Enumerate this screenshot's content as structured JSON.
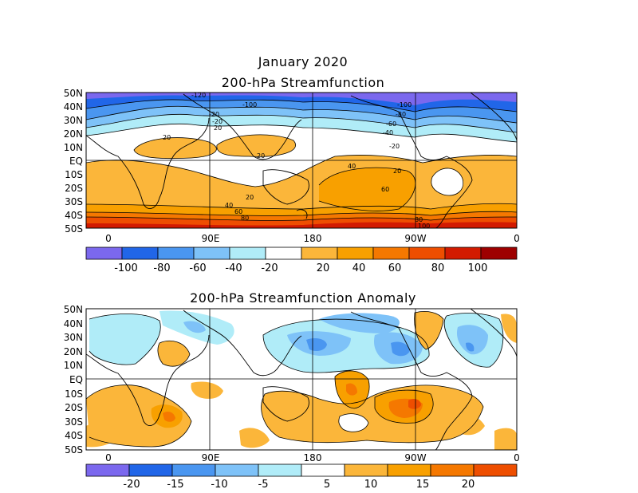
{
  "titles": {
    "main": "January 2020",
    "panel1": "200-hPa Streamfunction",
    "panel2": "200-hPa Streamfunction Anomaly"
  },
  "lat_labels": [
    "50N",
    "40N",
    "30N",
    "20N",
    "10N",
    "EQ",
    "10S",
    "20S",
    "30S",
    "40S",
    "50S"
  ],
  "lon_labels": [
    "0",
    "90E",
    "180",
    "90W",
    "0"
  ],
  "panel1": {
    "colorbar_colors": [
      "#7b68ee",
      "#2166e8",
      "#4a96f0",
      "#7ec2f8",
      "#b0ecf8",
      "#ffffff",
      "#fbb63a",
      "#f8a000",
      "#f57800",
      "#ee4e00",
      "#d21a00",
      "#9e0000"
    ],
    "colorbar_labels": [
      "-100",
      "-80",
      "-60",
      "-40",
      "-20",
      "20",
      "40",
      "60",
      "80",
      "100"
    ],
    "contour_labels": [
      "-120",
      "-100",
      "-100",
      "-80",
      "-60",
      "-40",
      "-20",
      "20",
      "20",
      "20",
      "20",
      "40",
      "40",
      "60",
      "60",
      "80",
      "80",
      "-20",
      "20",
      "-20",
      "100"
    ]
  },
  "panel2": {
    "colorbar_colors": [
      "#7b68ee",
      "#2166e8",
      "#4a96f0",
      "#7ec2f8",
      "#b0ecf8",
      "#ffffff",
      "#fbb63a",
      "#f8a000",
      "#f57800",
      "#ee4e00"
    ],
    "colorbar_labels": [
      "-20",
      "-15",
      "-10",
      "-5",
      "5",
      "10",
      "15",
      "20"
    ]
  }
}
